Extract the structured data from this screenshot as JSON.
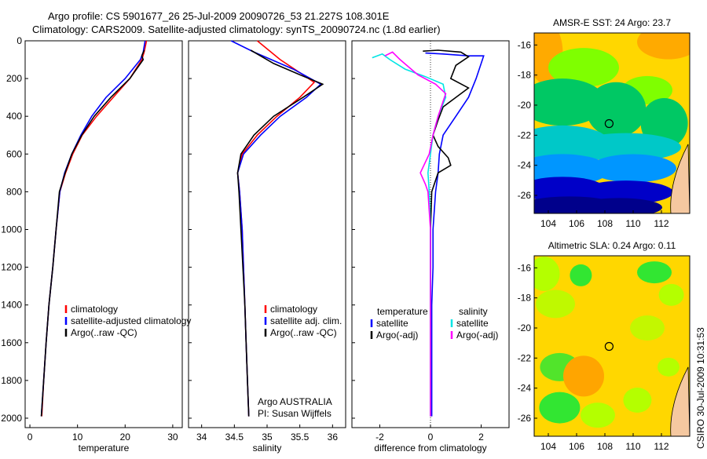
{
  "header": {
    "line1": "Argo profile: CS 5901677_26 25-Jul-2009 20090726_53 21.227S 108.301E",
    "line2": "Climatology: CARS2009. Satellite-adjusted climatology: synTS_20090724.nc (1.8d earlier)"
  },
  "side_text": "CSIRO 30-Jul-2009 10:31:53",
  "colors": {
    "red": "#ff0000",
    "blue": "#0000ff",
    "black": "#000000",
    "cyan": "#00e5e5",
    "magenta": "#ff00ff"
  },
  "chart_data": [
    {
      "type": "line",
      "id": "temperature",
      "xlabel": "temperature",
      "xlim": [
        -1,
        32
      ],
      "ylim": [
        2050,
        0
      ],
      "xticks": [
        0,
        10,
        20,
        30
      ],
      "yticks": [
        0,
        200,
        400,
        600,
        800,
        1000,
        1200,
        1400,
        1600,
        1800,
        2000
      ],
      "legend": [
        "climatology",
        "satellite-adjusted climatology",
        "Argo(..raw -QC)"
      ],
      "series": [
        {
          "name": "climatology",
          "color": "red",
          "points": [
            [
              24.5,
              0
            ],
            [
              24,
              60
            ],
            [
              23.5,
              100
            ],
            [
              21,
              200
            ],
            [
              17.5,
              300
            ],
            [
              14,
              400
            ],
            [
              11,
              500
            ],
            [
              9,
              600
            ],
            [
              7.5,
              700
            ],
            [
              6.3,
              800
            ],
            [
              5.5,
              1000
            ],
            [
              4.8,
              1200
            ],
            [
              4,
              1400
            ],
            [
              3.4,
              1600
            ],
            [
              2.9,
              1800
            ],
            [
              2.5,
              1990
            ]
          ]
        },
        {
          "name": "satellite-adjusted climatology",
          "color": "blue",
          "points": [
            [
              24.2,
              0
            ],
            [
              23.8,
              60
            ],
            [
              23.2,
              100
            ],
            [
              20,
              200
            ],
            [
              16,
              300
            ],
            [
              13,
              400
            ],
            [
              10.7,
              500
            ],
            [
              8.8,
              600
            ],
            [
              7.3,
              700
            ],
            [
              6.3,
              800
            ],
            [
              5.5,
              1000
            ],
            [
              4.8,
              1200
            ],
            [
              4,
              1400
            ],
            [
              3.4,
              1600
            ],
            [
              2.9,
              1800
            ],
            [
              2.4,
              1990
            ]
          ]
        },
        {
          "name": "Argo(..raw -QC)",
          "color": "black",
          "points": [
            [
              24,
              50
            ],
            [
              23.5,
              80
            ],
            [
              23.8,
              100
            ],
            [
              21,
              200
            ],
            [
              17,
              300
            ],
            [
              13.5,
              400
            ],
            [
              10.9,
              500
            ],
            [
              8.8,
              600
            ],
            [
              7.4,
              700
            ],
            [
              6.2,
              800
            ],
            [
              5.5,
              1000
            ],
            [
              4.8,
              1200
            ],
            [
              4,
              1400
            ],
            [
              3.4,
              1600
            ],
            [
              2.9,
              1800
            ],
            [
              2.4,
              1990
            ]
          ]
        }
      ]
    },
    {
      "type": "line",
      "id": "salinity",
      "xlabel": "salinity",
      "xlim": [
        33.8,
        36.2
      ],
      "ylim": [
        2050,
        0
      ],
      "xticks": [
        34,
        34.5,
        35,
        35.5,
        36
      ],
      "legend": [
        "climatology",
        "satellite adj. clim.",
        "Argo(..raw -QC)"
      ],
      "annotation": [
        "Argo AUSTRALIA",
        "PI: Susan Wijffels"
      ],
      "series": [
        {
          "name": "climatology",
          "color": "red",
          "points": [
            [
              34.85,
              0
            ],
            [
              35.2,
              100
            ],
            [
              35.55,
              180
            ],
            [
              35.72,
              220
            ],
            [
              35.5,
              300
            ],
            [
              35.15,
              400
            ],
            [
              34.85,
              500
            ],
            [
              34.62,
              600
            ],
            [
              34.55,
              700
            ],
            [
              34.58,
              800
            ],
            [
              34.62,
              1000
            ],
            [
              34.64,
              1200
            ],
            [
              34.66,
              1400
            ],
            [
              34.68,
              1600
            ],
            [
              34.7,
              1800
            ],
            [
              34.72,
              1990
            ]
          ]
        },
        {
          "name": "satellite adj. clim.",
          "color": "blue",
          "points": [
            [
              34.45,
              0
            ],
            [
              34.8,
              60
            ],
            [
              35.4,
              150
            ],
            [
              35.82,
              230
            ],
            [
              35.6,
              300
            ],
            [
              35.2,
              400
            ],
            [
              34.9,
              500
            ],
            [
              34.64,
              600
            ],
            [
              34.55,
              700
            ],
            [
              34.58,
              800
            ],
            [
              34.62,
              1000
            ],
            [
              34.64,
              1200
            ],
            [
              34.66,
              1400
            ],
            [
              34.68,
              1600
            ],
            [
              34.7,
              1800
            ],
            [
              34.72,
              1990
            ]
          ]
        },
        {
          "name": "Argo(..raw -QC)",
          "color": "black",
          "points": [
            [
              34.75,
              50
            ],
            [
              35.1,
              120
            ],
            [
              35.5,
              180
            ],
            [
              35.85,
              230
            ],
            [
              35.55,
              300
            ],
            [
              35.1,
              400
            ],
            [
              34.8,
              500
            ],
            [
              34.6,
              600
            ],
            [
              34.55,
              700
            ],
            [
              34.57,
              800
            ],
            [
              34.6,
              1000
            ],
            [
              34.63,
              1200
            ],
            [
              34.66,
              1400
            ],
            [
              34.68,
              1600
            ],
            [
              34.7,
              1800
            ],
            [
              34.72,
              1990
            ]
          ]
        }
      ]
    },
    {
      "type": "line",
      "id": "difference",
      "xlabel": "difference from climatology",
      "xlim": [
        -3.1,
        3.1
      ],
      "ylim": [
        2050,
        0
      ],
      "xticks": [
        -2,
        0,
        2
      ],
      "zero_line": true,
      "legend_temperature": {
        "title": "temperature",
        "items": [
          "satellite",
          "Argo(-adj)"
        ]
      },
      "legend_salinity": {
        "title": "salinity",
        "items": [
          "satellite",
          "Argo(-adj)"
        ]
      },
      "series": [
        {
          "name": "temperature satellite",
          "color": "blue",
          "points": [
            [
              -0.2,
              65
            ],
            [
              0.5,
              70
            ],
            [
              1.5,
              80
            ],
            [
              2.1,
              80
            ],
            [
              2,
              120
            ],
            [
              1.8,
              200
            ],
            [
              1.5,
              300
            ],
            [
              1,
              400
            ],
            [
              0.5,
              500
            ],
            [
              0.35,
              600
            ],
            [
              0.3,
              700
            ],
            [
              0.2,
              800
            ],
            [
              0.1,
              1000
            ],
            [
              0.1,
              1200
            ],
            [
              0.05,
              1400
            ],
            [
              0.05,
              1600
            ],
            [
              0.05,
              1800
            ],
            [
              0.05,
              1990
            ]
          ]
        },
        {
          "name": "temperature Argo(-adj)",
          "color": "black",
          "points": [
            [
              -0.3,
              55
            ],
            [
              0.3,
              50
            ],
            [
              1.2,
              60
            ],
            [
              1.5,
              85
            ],
            [
              1,
              130
            ],
            [
              0.8,
              200
            ],
            [
              1.5,
              250
            ],
            [
              0.9,
              310
            ],
            [
              0.5,
              350
            ],
            [
              0.3,
              420
            ],
            [
              0.1,
              500
            ],
            [
              0.3,
              560
            ],
            [
              0.7,
              620
            ],
            [
              0.8,
              660
            ],
            [
              0.3,
              700
            ],
            [
              0.05,
              800
            ],
            [
              0,
              1000
            ],
            [
              0,
              1200
            ],
            [
              0,
              1400
            ],
            [
              0,
              1600
            ],
            [
              0,
              1800
            ],
            [
              0,
              1990
            ]
          ]
        },
        {
          "name": "salinity satellite",
          "color": "cyan",
          "points": [
            [
              -2.3,
              90
            ],
            [
              -1.9,
              70
            ],
            [
              -1.6,
              100
            ],
            [
              -1,
              150
            ],
            [
              -0.2,
              190
            ],
            [
              0.5,
              230
            ],
            [
              0.6,
              300
            ],
            [
              0.3,
              400
            ],
            [
              0.1,
              500
            ],
            [
              0,
              600
            ],
            [
              -0.1,
              700
            ],
            [
              -0.05,
              800
            ],
            [
              0,
              1000
            ],
            [
              0,
              1200
            ],
            [
              0,
              1400
            ],
            [
              0,
              1600
            ],
            [
              0,
              1800
            ],
            [
              0,
              1990
            ]
          ]
        },
        {
          "name": "salinity Argo(-adj)",
          "color": "magenta",
          "points": [
            [
              -1.8,
              80
            ],
            [
              -1.5,
              60
            ],
            [
              -1.2,
              100
            ],
            [
              -0.5,
              180
            ],
            [
              0.2,
              230
            ],
            [
              0.6,
              280
            ],
            [
              0.3,
              400
            ],
            [
              0.1,
              500
            ],
            [
              -0.05,
              600
            ],
            [
              -0.4,
              700
            ],
            [
              -0.2,
              760
            ],
            [
              -0.1,
              800
            ],
            [
              0,
              1000
            ],
            [
              0,
              1200
            ],
            [
              0,
              1400
            ],
            [
              0,
              1600
            ],
            [
              0,
              1800
            ],
            [
              0,
              1990
            ]
          ]
        }
      ]
    },
    {
      "type": "heatmap",
      "id": "sst_map",
      "title": "AMSR-E SST: 24 Argo: 23.7",
      "xlim": [
        103,
        114
      ],
      "ylim": [
        -27.2,
        -15.2
      ],
      "xticks": [
        104,
        106,
        108,
        110,
        112
      ],
      "yticks": [
        -16,
        -18,
        -20,
        -22,
        -24,
        -26
      ],
      "marker": [
        108.3,
        -21.227
      ],
      "description_colors": [
        "#ffa500",
        "#ffd700",
        "#7fff00",
        "#00c864",
        "#00c8c8",
        "#0096ff",
        "#0000c8",
        "#00008b"
      ]
    },
    {
      "type": "heatmap",
      "id": "sla_map",
      "title": "Altimetric SLA: 0.24 Argo: 0.11",
      "xlim": [
        103,
        114
      ],
      "ylim": [
        -27.2,
        -15.2
      ],
      "xticks": [
        104,
        106,
        108,
        110,
        112
      ],
      "yticks": [
        -16,
        -18,
        -20,
        -22,
        -24,
        -26
      ],
      "marker": [
        108.3,
        -21.227
      ],
      "description_colors": [
        "#ffa500",
        "#ffd700",
        "#b4ff00",
        "#32e632",
        "#00c8a0"
      ]
    }
  ]
}
